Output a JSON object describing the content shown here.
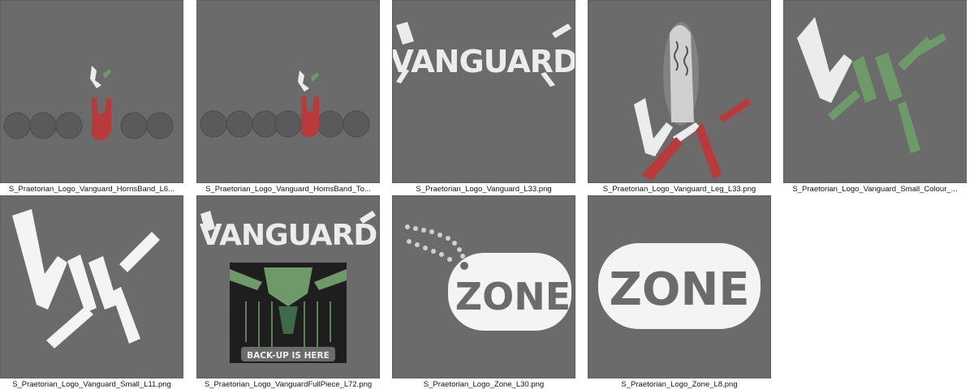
{
  "files": [
    {
      "name": "S_Praetorian_Logo_Vanguard_HornsBand_L6..."
    },
    {
      "name": "S_Praetorian_Logo_Vanguard_HornsBand_To..."
    },
    {
      "name": "S_Praetorian_Logo_Vanguard_L33.png",
      "logo_text": "VANGUARD"
    },
    {
      "name": "S_Praetorian_Logo_Vanguard_Leg_L33.png"
    },
    {
      "name": "S_Praetorian_Logo_Vanguard_Small_Colour_..."
    },
    {
      "name": "S_Praetorian_Logo_Vanguard_Small_L11.png"
    },
    {
      "name": "S_Praetorian_Logo_VanguardFullPiece_L72.png",
      "logo_text": "VANGUARD",
      "banner_text": "BACK-UP IS HERE"
    },
    {
      "name": "S_Praetorian_Logo_Zone_L30.png",
      "logo_text": "ZONE"
    },
    {
      "name": "S_Praetorian_Logo_Zone_L8.png",
      "logo_text": "ZONE"
    }
  ],
  "colors": {
    "thumb_bg": "#6b6b6b",
    "logo_white": "#ececec",
    "accent_red": "#b83a3a",
    "accent_green": "#6e9a6a"
  }
}
